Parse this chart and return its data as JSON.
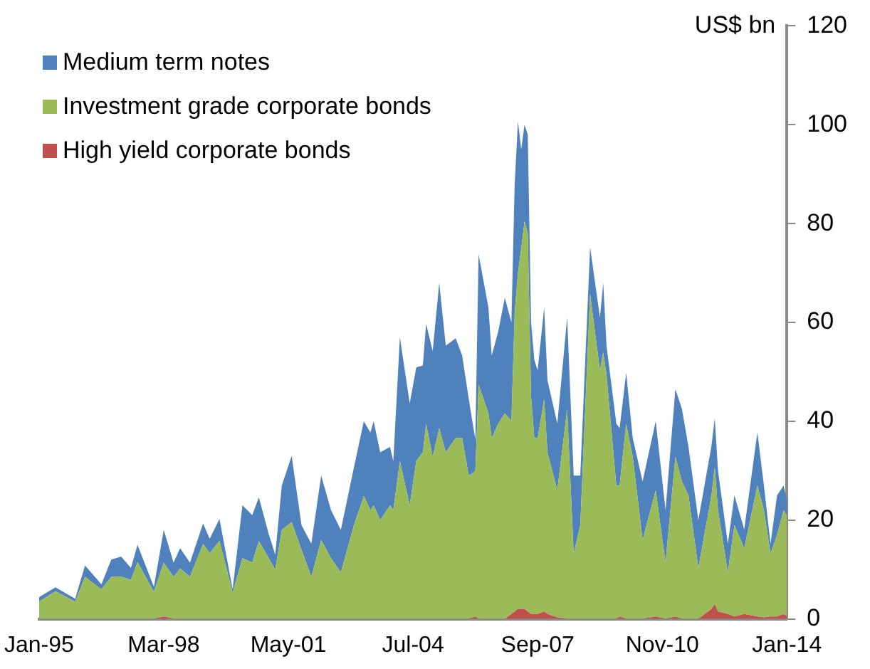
{
  "chart_data": {
    "type": "area",
    "stacked": true,
    "ylabel": "US$ bn",
    "legend": "top left",
    "grid": false,
    "x": [
      "1995-01",
      "1995-06",
      "1995-12",
      "1996-03",
      "1996-08",
      "1996-11",
      "1997-02",
      "1997-05",
      "1997-07",
      "1997-12",
      "1998-03",
      "1998-06",
      "1998-08",
      "1998-11",
      "1999-03",
      "1999-05",
      "1999-08",
      "1999-12",
      "2000-03",
      "2000-06",
      "2000-08",
      "2000-11",
      "2001-01",
      "2001-03",
      "2001-06",
      "2001-09",
      "2001-12",
      "2002-03",
      "2002-06",
      "2002-09",
      "2003-01",
      "2003-04",
      "2003-06",
      "2003-07",
      "2003-09",
      "2003-12",
      "2004-01",
      "2004-03",
      "2004-06",
      "2004-08",
      "2004-10",
      "2004-11",
      "2005-01",
      "2005-03",
      "2005-05",
      "2005-08",
      "2005-10",
      "2005-12",
      "2006-02",
      "2006-03",
      "2006-06",
      "2006-07",
      "2006-09",
      "2006-11",
      "2007-01",
      "2007-02",
      "2007-03",
      "2007-04",
      "2007-05",
      "2007-06",
      "2007-07",
      "2007-08",
      "2007-09",
      "2007-11",
      "2007-12",
      "2008-03",
      "2008-06",
      "2008-08",
      "2008-10",
      "2009-01",
      "2009-04",
      "2009-05",
      "2009-06",
      "2009-09",
      "2009-10",
      "2009-12",
      "2010-02",
      "2010-05",
      "2010-09",
      "2010-12",
      "2011-03",
      "2011-05",
      "2011-07",
      "2011-10",
      "2012-02",
      "2012-03",
      "2012-04",
      "2012-07",
      "2012-09",
      "2012-12",
      "2013-04",
      "2013-06",
      "2013-08",
      "2013-10",
      "2013-12",
      "2014-01"
    ],
    "series": [
      {
        "name": "High yield corporate bonds",
        "color": "#c0504d",
        "values": [
          0,
          0,
          0,
          0,
          0,
          0,
          0,
          0,
          0,
          0,
          0.5,
          0,
          0,
          0,
          0,
          0,
          0,
          0,
          0,
          0,
          0,
          0,
          0,
          0,
          0,
          0,
          0,
          0,
          0,
          0,
          0,
          0,
          0,
          0,
          0,
          0,
          0,
          0,
          0,
          0,
          0,
          0,
          0,
          0,
          0,
          0,
          0,
          0,
          0.5,
          0,
          0,
          0,
          0,
          0,
          1,
          1.5,
          2,
          2,
          2,
          1.5,
          1,
          1,
          1,
          1.5,
          1,
          0.3,
          0,
          0,
          0,
          0,
          0,
          0,
          0,
          0,
          0.5,
          0,
          0,
          0,
          0.5,
          0,
          0.5,
          0,
          0,
          0,
          2,
          3,
          1.5,
          1,
          0.5,
          1,
          0.5,
          0.3,
          0.5,
          0.5,
          1,
          0.5
        ]
      },
      {
        "name": "Investment grade corporate bonds",
        "color": "#9bbb59",
        "values": [
          3.5,
          5.6,
          3.5,
          8.5,
          6,
          8.5,
          8.6,
          7.9,
          11.5,
          5.5,
          10.9,
          8.5,
          10.2,
          8.5,
          15.2,
          13.3,
          15.8,
          5.3,
          12.3,
          11.4,
          15.8,
          12.3,
          10,
          18,
          19.6,
          14,
          8.5,
          16,
          12.3,
          9.4,
          19,
          24.9,
          22,
          23,
          20,
          23,
          22,
          32,
          23,
          32,
          33.7,
          39.5,
          32.8,
          38.6,
          33.7,
          36.6,
          36.6,
          29,
          29.4,
          47.4,
          41.6,
          36.6,
          39.5,
          41.6,
          39,
          60.5,
          68,
          73,
          78.5,
          76.5,
          44,
          35.6,
          35.6,
          43,
          32.7,
          25.7,
          42.5,
          13.2,
          19,
          65.8,
          50.3,
          54,
          49.4,
          27,
          26.5,
          39.5,
          32.8,
          16,
          25.5,
          11.4,
          32.3,
          27.8,
          25,
          10.3,
          23,
          27.7,
          20.5,
          8.4,
          18.5,
          13.3,
          26.5,
          21.7,
          12.7,
          16.5,
          21,
          20.5
        ]
      },
      {
        "name": "Medium term notes",
        "color": "#4f81bd",
        "values": [
          0.9,
          0.8,
          0.6,
          2.3,
          1,
          3.5,
          4,
          2.4,
          3.5,
          1,
          6.6,
          2.9,
          4.1,
          2.9,
          4.1,
          2.9,
          4.4,
          0.7,
          10.7,
          9.6,
          8.8,
          4.9,
          3,
          9,
          13.4,
          5,
          6.7,
          13,
          9.7,
          8.6,
          11.7,
          15.1,
          15.7,
          17,
          13.7,
          11.8,
          9.9,
          25,
          20.6,
          18.9,
          17.6,
          20.2,
          21.4,
          29.4,
          21.6,
          20.2,
          16.7,
          15.5,
          6.4,
          26.4,
          21.4,
          16.7,
          18.7,
          23.4,
          20,
          26,
          30.7,
          20,
          19.5,
          20,
          15,
          15.8,
          13.7,
          18.5,
          14.6,
          13.5,
          18.5,
          15.8,
          10,
          9.4,
          10.7,
          14,
          5.9,
          12.5,
          11.6,
          10.3,
          3.8,
          11.8,
          14,
          10.6,
          13.7,
          14.7,
          9.8,
          9.7,
          10,
          9.9,
          8,
          5.8,
          6,
          3.8,
          10.7,
          5,
          2,
          8,
          5,
          3
        ]
      }
    ],
    "xlim": [
      "1995-01",
      "2014-01"
    ],
    "xticks": [
      {
        "value": "1995-01",
        "label": "Jan-95"
      },
      {
        "value": "1998-03",
        "label": "Mar-98"
      },
      {
        "value": "2001-05",
        "label": "May-01"
      },
      {
        "value": "2004-07",
        "label": "Jul-04"
      },
      {
        "value": "2007-09",
        "label": "Sep-07"
      },
      {
        "value": "2010-11",
        "label": "Nov-10"
      },
      {
        "value": "2014-01",
        "label": "Jan-14"
      }
    ],
    "ylim": [
      0,
      120
    ],
    "yticks": [
      0,
      20,
      40,
      60,
      80,
      100,
      120
    ]
  }
}
